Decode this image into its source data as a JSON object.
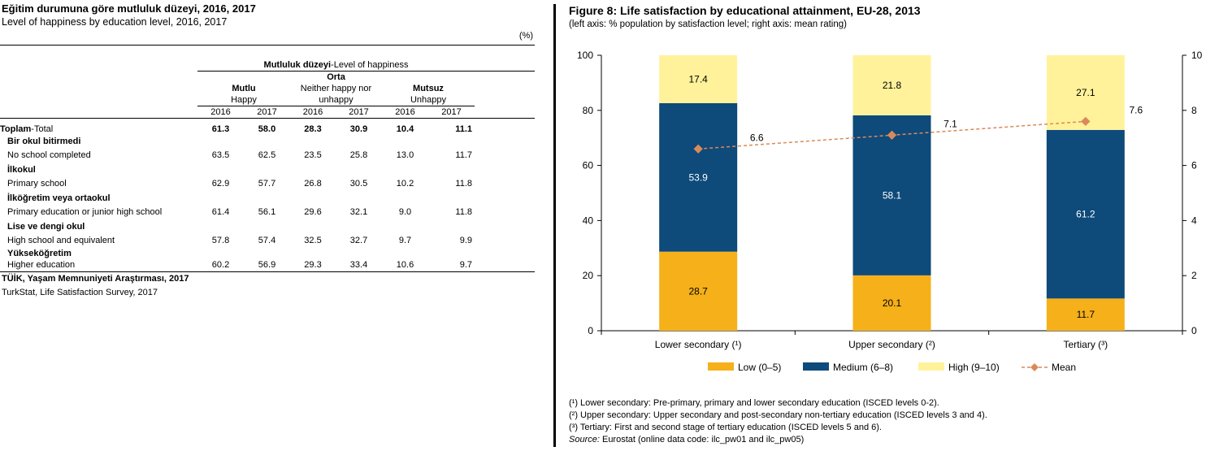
{
  "table": {
    "title": "Eğitim durumuna göre mutluluk düzeyi, 2016, 2017",
    "subtitle": "Level of happiness by education level, 2016, 2017",
    "unit": "(%)",
    "group_header": "Mutluluk düzeyi-Level of happiness",
    "group_header_bold": "Mutluluk düzeyi",
    "group_header_rest": "-Level of happiness",
    "columns": [
      {
        "tr": "Mutlu",
        "en": "Happy",
        "en2": ""
      },
      {
        "tr": "Orta",
        "en": "Neither happy nor",
        "en2": "unhappy"
      },
      {
        "tr": "Mutsuz",
        "en": "Unhappy",
        "en2": ""
      }
    ],
    "years": [
      "2016",
      "2017"
    ],
    "total_row": {
      "tr": "Toplam",
      "en": "-Total",
      "values": [
        "61.3",
        "58.0",
        "28.3",
        "30.9",
        "10.4",
        "11.1"
      ]
    },
    "rows": [
      {
        "tr": "Bir okul bitirmedi",
        "en": "No school completed",
        "values": [
          "63.5",
          "62.5",
          "23.5",
          "25.8",
          "13.0",
          "11.7"
        ]
      },
      {
        "tr": "İlkokul",
        "en": "Primary school",
        "values": [
          "62.9",
          "57.7",
          "26.8",
          "30.5",
          "10.2",
          "11.8"
        ]
      },
      {
        "tr": "İlköğretim veya ortaokul",
        "en": "Primary education or junior high school",
        "values": [
          "61.4",
          "56.1",
          "29.6",
          "32.1",
          "9.0",
          "11.8"
        ]
      },
      {
        "tr": "Lise ve dengi okul",
        "en": "High school and equivalent",
        "values": [
          "57.8",
          "57.4",
          "32.5",
          "32.7",
          "9.7",
          "9.9"
        ]
      },
      {
        "tr": "Yükseköğretim",
        "en": "Higher education",
        "values": [
          "60.2",
          "56.9",
          "29.3",
          "33.4",
          "10.6",
          "9.7"
        ]
      }
    ],
    "source_tr": "TÜİK, Yaşam Memnuniyeti Araştırması, 2017",
    "source_en": "TurkStat, Life Satisfaction Survey, 2017"
  },
  "figure": {
    "title": "Figure 8: Life satisfaction by educational attainment, EU-28, 2013",
    "subtitle": "(left axis: % population by satisfaction level; right axis: mean rating)",
    "footnotes": [
      "(¹) Lower secondary: Pre-primary, primary and lower secondary education (ISCED levels 0-2).",
      "(²) Upper secondary: Upper secondary and post-secondary non-tertiary education (ISCED levels 3 and 4).",
      "(³) Tertiary: First and second stage of tertiary education (ISCED levels 5 and 6)."
    ],
    "source_label": "Source:",
    "source_text": " Eurostat (online data code: ilc_pw01 and  ilc_pw05)"
  },
  "chart_data": {
    "type": "bar",
    "stacked": true,
    "title": "Figure 8: Life satisfaction by educational attainment, EU-28, 2013",
    "categories": [
      "Lower secondary (¹)",
      "Upper secondary (²)",
      "Tertiary (³)"
    ],
    "series": [
      {
        "name": "Low (0–5)",
        "values": [
          28.7,
          20.1,
          11.7
        ],
        "color": "#F5B01A",
        "axis": "left"
      },
      {
        "name": "Medium (6–8)",
        "values": [
          53.9,
          58.1,
          61.2
        ],
        "color": "#0E4A7A",
        "axis": "left"
      },
      {
        "name": "High (9–10)",
        "values": [
          17.4,
          21.8,
          27.1
        ],
        "color": "#FFF29A",
        "axis": "left"
      },
      {
        "name": "Mean",
        "type": "line",
        "values": [
          6.6,
          7.1,
          7.6
        ],
        "color": "#D98A5A",
        "axis": "right"
      }
    ],
    "ylim_left": [
      0,
      100
    ],
    "yticks_left": [
      0,
      20,
      40,
      60,
      80,
      100
    ],
    "ylim_right": [
      0,
      10
    ],
    "yticks_right": [
      0,
      2,
      4,
      6,
      8,
      10
    ],
    "legend_position": "bottom",
    "grid": false
  }
}
